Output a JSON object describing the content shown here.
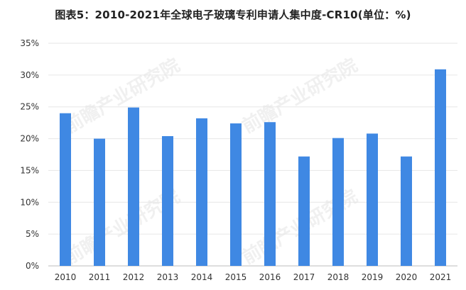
{
  "title": "图表5：2010-2021年全球电子玻璃专利申请人集中度-CR10(单位：%)",
  "watermark": "前瞻产业研究院",
  "chart_data": {
    "type": "bar",
    "title": "图表5：2010-2021年全球电子玻璃专利申请人集中度-CR10(单位：%)",
    "categories": [
      "2010",
      "2011",
      "2012",
      "2013",
      "2014",
      "2015",
      "2016",
      "2017",
      "2018",
      "2019",
      "2020",
      "2021"
    ],
    "values": [
      24.0,
      20.0,
      24.9,
      20.4,
      23.2,
      22.4,
      22.6,
      17.2,
      20.1,
      20.8,
      17.2,
      30.9
    ],
    "ylim": [
      0,
      35
    ],
    "yticks": [
      0,
      5,
      10,
      15,
      20,
      25,
      30,
      35
    ],
    "ytick_labels": [
      "0%",
      "5%",
      "10%",
      "15%",
      "20%",
      "25%",
      "30%",
      "35%"
    ],
    "bar_color": "#3F88E3",
    "grid": "horizontal",
    "xlabel": "",
    "ylabel": ""
  }
}
